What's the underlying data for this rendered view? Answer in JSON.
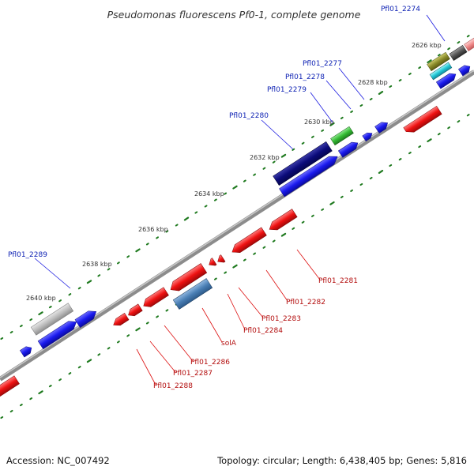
{
  "title": "Pseudomonas fluorescens Pf0-1, complete genome",
  "footer": {
    "accession": "Accession: NC_007492",
    "summary": "Topology: circular; Length: 6,438,405 bp; Genes: 5,816"
  },
  "scale_ticks": [
    "2626 kbp",
    "2628 kbp",
    "2630 kbp",
    "2632 kbp",
    "2634 kbp",
    "2636 kbp",
    "2638 kbp",
    "2640 kbp"
  ],
  "genes_forward": [
    {
      "name": "Pfl01_2274"
    },
    {
      "name": "Pfl01_2277"
    },
    {
      "name": "Pfl01_2278"
    },
    {
      "name": "Pfl01_2279"
    },
    {
      "name": "Pfl01_2280"
    },
    {
      "name": "Pfl01_2289"
    }
  ],
  "genes_reverse": [
    {
      "name": "Pfl01_2281"
    },
    {
      "name": "Pfl01_2282"
    },
    {
      "name": "Pfl01_2283"
    },
    {
      "name": "Pfl01_2284"
    },
    {
      "name": "solA"
    },
    {
      "name": "Pfl01_2286"
    },
    {
      "name": "Pfl01_2287"
    },
    {
      "name": "Pfl01_2288"
    }
  ],
  "colors": {
    "forward_cds": "#1a1aee",
    "reverse_cds": "#ee1111",
    "feature_navy": "#0b0b7a",
    "feature_green": "#33bb33",
    "feature_steel": "#4a7fb5",
    "feature_gray": "#b8b8b8",
    "backbone": "#8c8c8c",
    "tick": "#1f7a1f"
  }
}
